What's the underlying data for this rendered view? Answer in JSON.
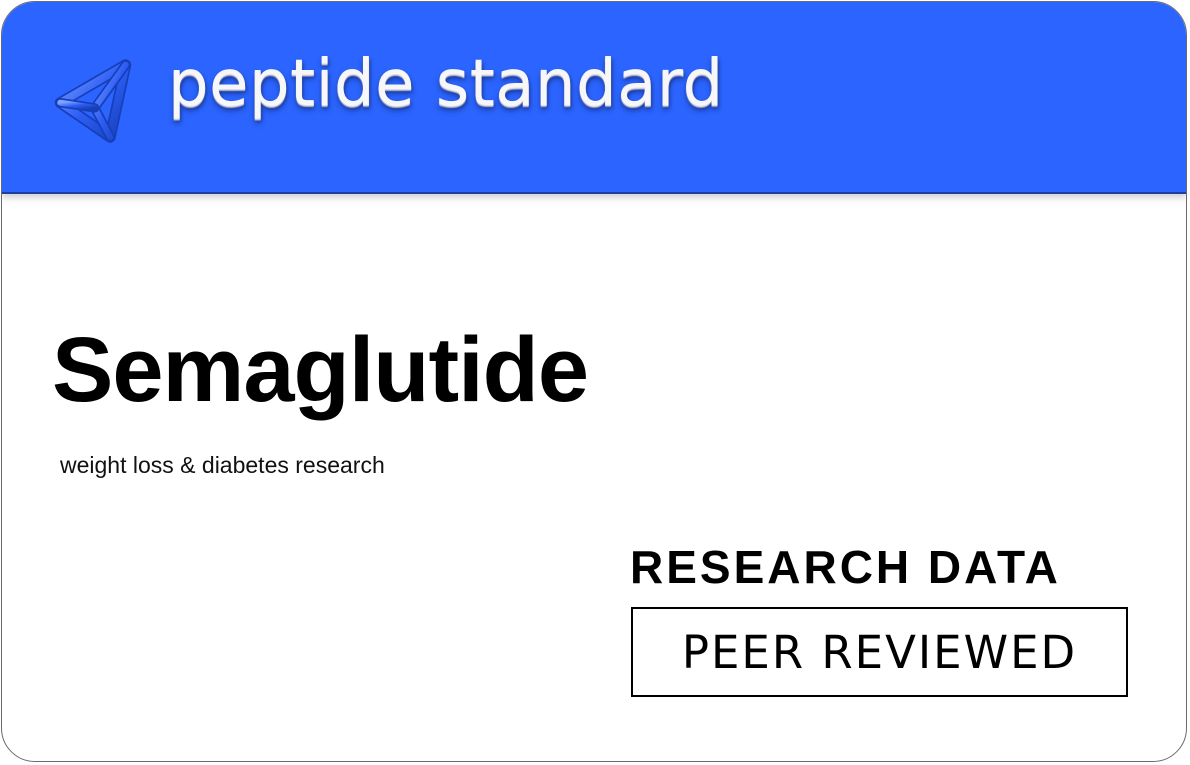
{
  "brand": {
    "name": "peptide standard",
    "logo_icon": "triangle-knot-icon",
    "header_color": "#2b64fe"
  },
  "product": {
    "name": "Semaglutide",
    "tagline": "weight loss & diabetes research"
  },
  "badges": {
    "research_label": "RESEARCH DATA",
    "peer_label": "PEER REVIEWED"
  }
}
